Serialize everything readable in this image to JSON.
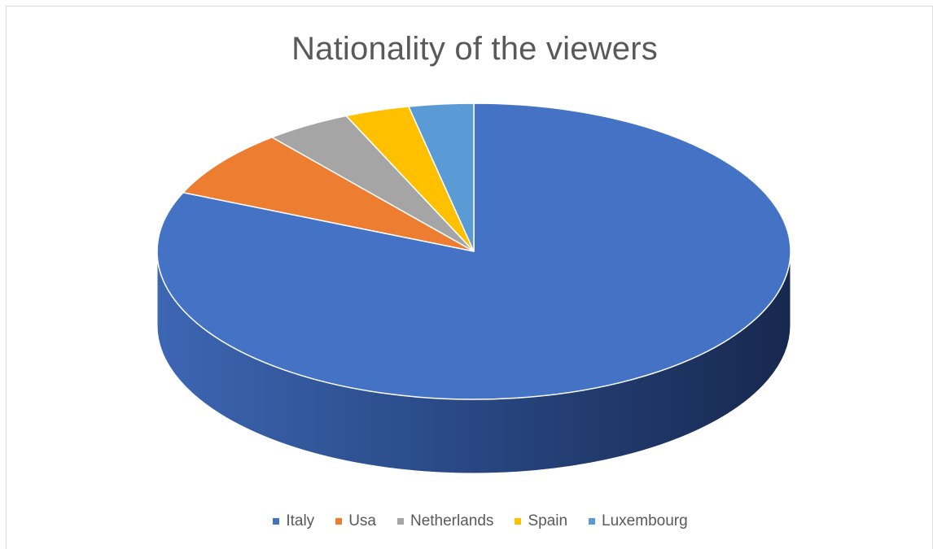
{
  "chart_data": {
    "type": "pie",
    "title": "Nationality of the viewers",
    "categories": [
      "Italy",
      "Usa",
      "Netherlands",
      "Spain",
      "Luxembourg"
    ],
    "values": [
      81.5,
      7.5,
      4.4,
      3.3,
      3.3
    ],
    "colors": [
      "#4472c4",
      "#ed7d31",
      "#a5a5a5",
      "#ffc000",
      "#5b9bd5"
    ],
    "legend_position": "bottom",
    "style": "3d"
  }
}
